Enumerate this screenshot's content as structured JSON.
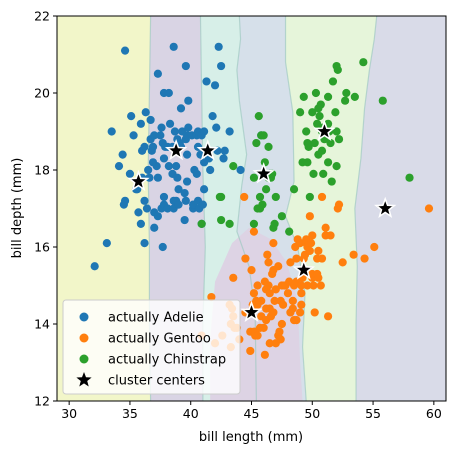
{
  "chart_data": {
    "type": "scatter",
    "title": "",
    "xlabel": "bill length (mm)",
    "ylabel": "bill depth (mm)",
    "xlim": [
      29,
      61
    ],
    "ylim": [
      12,
      22
    ],
    "xticks": [
      30,
      35,
      40,
      45,
      50,
      55,
      60
    ],
    "yticks": [
      12,
      14,
      16,
      18,
      20,
      22
    ],
    "grid": false,
    "legend_position": "lower-left",
    "background_regions": {
      "description_colors": [
        "#f2f6c9",
        "#d9d4e4",
        "#d7efe8",
        "#d6e0ea",
        "#e6f5da",
        "#d9dbe8"
      ],
      "x_boundaries_at_y16": [
        36.6,
        41.2,
        45.3,
        49.2,
        53.5
      ]
    },
    "series": [
      {
        "name": "actually Adelie",
        "color": "#1f77b4",
        "points": [
          [
            34.6,
            21.1
          ],
          [
            32.1,
            15.5
          ],
          [
            33.1,
            16.1
          ],
          [
            33.5,
            19.0
          ],
          [
            34.1,
            18.1
          ],
          [
            34.4,
            18.4
          ],
          [
            34.5,
            17.1
          ],
          [
            34.6,
            17.2
          ],
          [
            35.0,
            17.9
          ],
          [
            35.1,
            19.4
          ],
          [
            35.3,
            18.9
          ],
          [
            35.5,
            17.5
          ],
          [
            35.6,
            17.5
          ],
          [
            35.7,
            16.9
          ],
          [
            35.9,
            16.6
          ],
          [
            35.9,
            19.2
          ],
          [
            36.0,
            17.8
          ],
          [
            36.0,
            18.5
          ],
          [
            36.2,
            16.1
          ],
          [
            36.2,
            17.2
          ],
          [
            36.2,
            18.6
          ],
          [
            36.3,
            19.5
          ],
          [
            36.4,
            17.0
          ],
          [
            36.5,
            18.0
          ],
          [
            36.6,
            17.8
          ],
          [
            36.7,
            18.8
          ],
          [
            36.7,
            19.3
          ],
          [
            36.8,
            18.5
          ],
          [
            36.9,
            18.6
          ],
          [
            37.0,
            16.5
          ],
          [
            37.0,
            16.9
          ],
          [
            37.2,
            18.1
          ],
          [
            37.3,
            16.8
          ],
          [
            37.3,
            17.8
          ],
          [
            37.3,
            20.5
          ],
          [
            37.5,
            18.9
          ],
          [
            37.6,
            17.0
          ],
          [
            37.6,
            19.1
          ],
          [
            37.7,
            16.0
          ],
          [
            37.7,
            18.7
          ],
          [
            37.8,
            17.1
          ],
          [
            37.8,
            17.3
          ],
          [
            37.8,
            18.3
          ],
          [
            37.8,
            20.0
          ],
          [
            37.9,
            18.6
          ],
          [
            38.1,
            17.0
          ],
          [
            38.1,
            18.6
          ],
          [
            38.2,
            18.1
          ],
          [
            38.2,
            20.0
          ],
          [
            38.3,
            19.2
          ],
          [
            38.5,
            17.9
          ],
          [
            38.6,
            17.0
          ],
          [
            38.6,
            17.2
          ],
          [
            38.6,
            21.2
          ],
          [
            38.7,
            19.0
          ],
          [
            38.8,
            17.2
          ],
          [
            38.8,
            18.1
          ],
          [
            38.9,
            17.8
          ],
          [
            38.9,
            18.8
          ],
          [
            39.0,
            17.1
          ],
          [
            39.0,
            17.5
          ],
          [
            39.1,
            18.7
          ],
          [
            39.2,
            18.6
          ],
          [
            39.2,
            19.6
          ],
          [
            39.5,
            16.7
          ],
          [
            39.5,
            17.4
          ],
          [
            39.6,
            17.2
          ],
          [
            39.6,
            18.8
          ],
          [
            39.6,
            20.7
          ],
          [
            39.7,
            17.7
          ],
          [
            39.7,
            18.4
          ],
          [
            39.7,
            18.9
          ],
          [
            39.8,
            19.1
          ],
          [
            39.8,
            19.8
          ],
          [
            40.1,
            18.9
          ],
          [
            40.2,
            17.0
          ],
          [
            40.2,
            17.1
          ],
          [
            40.3,
            18.0
          ],
          [
            40.5,
            17.9
          ],
          [
            40.5,
            18.9
          ],
          [
            40.6,
            17.2
          ],
          [
            40.6,
            18.6
          ],
          [
            40.6,
            19.0
          ],
          [
            40.7,
            17.0
          ],
          [
            40.8,
            18.4
          ],
          [
            40.9,
            16.6
          ],
          [
            40.9,
            18.9
          ],
          [
            41.0,
            17.1
          ],
          [
            41.1,
            17.5
          ],
          [
            41.1,
            18.2
          ],
          [
            41.1,
            19.0
          ],
          [
            41.3,
            20.3
          ],
          [
            41.4,
            18.5
          ],
          [
            41.5,
            18.3
          ],
          [
            41.6,
            18.0
          ],
          [
            41.8,
            19.4
          ],
          [
            42.0,
            20.2
          ],
          [
            42.1,
            19.1
          ],
          [
            42.2,
            18.5
          ],
          [
            42.3,
            21.2
          ],
          [
            42.5,
            20.7
          ],
          [
            42.7,
            18.3
          ],
          [
            42.8,
            18.5
          ],
          [
            43.2,
            19.0
          ],
          [
            44.1,
            18.0
          ],
          [
            45.8,
            18.9
          ],
          [
            37.0,
            18.9
          ],
          [
            36.9,
            18.2
          ],
          [
            38.5,
            18.6
          ],
          [
            39.3,
            19.0
          ]
        ]
      },
      {
        "name": "actually Gentoo",
        "color": "#ff7f0e",
        "points": [
          [
            40.9,
            13.7
          ],
          [
            41.7,
            14.7
          ],
          [
            42.0,
            13.5
          ],
          [
            42.6,
            13.7
          ],
          [
            43.2,
            14.5
          ],
          [
            43.3,
            13.4
          ],
          [
            43.3,
            14.0
          ],
          [
            43.4,
            14.4
          ],
          [
            43.5,
            14.2
          ],
          [
            43.5,
            15.2
          ],
          [
            43.6,
            13.9
          ],
          [
            43.8,
            13.9
          ],
          [
            44.0,
            13.6
          ],
          [
            44.4,
            17.3
          ],
          [
            44.5,
            14.3
          ],
          [
            44.5,
            15.7
          ],
          [
            44.9,
            13.3
          ],
          [
            44.9,
            13.8
          ],
          [
            45.0,
            15.4
          ],
          [
            45.1,
            14.4
          ],
          [
            45.1,
            14.5
          ],
          [
            45.2,
            13.8
          ],
          [
            45.2,
            14.8
          ],
          [
            45.2,
            16.4
          ],
          [
            45.3,
            13.7
          ],
          [
            45.3,
            13.8
          ],
          [
            45.4,
            14.6
          ],
          [
            45.5,
            13.7
          ],
          [
            45.5,
            14.5
          ],
          [
            45.5,
            15.0
          ],
          [
            45.7,
            13.9
          ],
          [
            45.8,
            14.2
          ],
          [
            45.8,
            14.6
          ],
          [
            46.1,
            13.2
          ],
          [
            46.1,
            15.1
          ],
          [
            46.2,
            14.1
          ],
          [
            46.2,
            14.4
          ],
          [
            46.2,
            14.9
          ],
          [
            46.3,
            15.8
          ],
          [
            46.4,
            15.0
          ],
          [
            46.4,
            15.6
          ],
          [
            46.5,
            13.5
          ],
          [
            46.5,
            14.4
          ],
          [
            46.5,
            14.8
          ],
          [
            46.6,
            14.2
          ],
          [
            46.7,
            15.3
          ],
          [
            46.8,
            14.3
          ],
          [
            46.8,
            15.4
          ],
          [
            46.8,
            16.1
          ],
          [
            46.9,
            14.6
          ],
          [
            47.0,
            13.5
          ],
          [
            47.2,
            13.7
          ],
          [
            47.2,
            15.5
          ],
          [
            47.3,
            13.8
          ],
          [
            47.4,
            14.6
          ],
          [
            47.5,
            14.0
          ],
          [
            47.5,
            15.0
          ],
          [
            47.6,
            14.5
          ],
          [
            47.7,
            15.0
          ],
          [
            47.8,
            15.0
          ],
          [
            48.1,
            15.1
          ],
          [
            48.2,
            14.3
          ],
          [
            48.2,
            15.6
          ],
          [
            48.4,
            14.4
          ],
          [
            48.4,
            14.6
          ],
          [
            48.5,
            14.1
          ],
          [
            48.5,
            15.0
          ],
          [
            48.6,
            16.0
          ],
          [
            48.7,
            14.1
          ],
          [
            48.7,
            15.1
          ],
          [
            48.7,
            15.7
          ],
          [
            48.8,
            16.2
          ],
          [
            49.0,
            16.1
          ],
          [
            49.1,
            14.5
          ],
          [
            49.1,
            14.8
          ],
          [
            49.1,
            15.0
          ],
          [
            49.2,
            15.2
          ],
          [
            49.3,
            15.7
          ],
          [
            49.4,
            15.8
          ],
          [
            49.5,
            16.1
          ],
          [
            49.5,
            16.2
          ],
          [
            49.6,
            15.0
          ],
          [
            49.6,
            16.0
          ],
          [
            49.8,
            15.9
          ],
          [
            49.8,
            16.8
          ],
          [
            49.9,
            16.1
          ],
          [
            50.0,
            15.2
          ],
          [
            50.0,
            15.3
          ],
          [
            50.0,
            16.3
          ],
          [
            50.1,
            15.0
          ],
          [
            50.2,
            14.3
          ],
          [
            50.4,
            15.3
          ],
          [
            50.4,
            15.7
          ],
          [
            50.5,
            15.2
          ],
          [
            50.5,
            15.9
          ],
          [
            50.7,
            15.0
          ],
          [
            50.8,
            15.7
          ],
          [
            50.8,
            17.3
          ],
          [
            51.1,
            16.3
          ],
          [
            51.1,
            16.5
          ],
          [
            51.3,
            14.2
          ],
          [
            51.5,
            16.3
          ],
          [
            52.1,
            17.0
          ],
          [
            52.2,
            17.1
          ],
          [
            52.5,
            15.6
          ],
          [
            53.4,
            15.8
          ],
          [
            54.3,
            15.7
          ],
          [
            55.1,
            16.0
          ],
          [
            55.9,
            17.0
          ],
          [
            59.6,
            17.0
          ],
          [
            47.4,
            13.6
          ],
          [
            46.0,
            13.9
          ],
          [
            48.0,
            14.8
          ],
          [
            49.0,
            14.3
          ],
          [
            47.0,
            14.9
          ]
        ]
      },
      {
        "name": "actually Chinstrap",
        "color": "#2ca02c",
        "points": [
          [
            40.9,
            16.6
          ],
          [
            42.4,
            17.3
          ],
          [
            42.5,
            17.3
          ],
          [
            42.5,
            16.7
          ],
          [
            43.2,
            16.6
          ],
          [
            43.5,
            18.1
          ],
          [
            45.2,
            16.6
          ],
          [
            45.2,
            17.8
          ],
          [
            45.4,
            18.7
          ],
          [
            45.5,
            17.0
          ],
          [
            45.6,
            19.4
          ],
          [
            45.7,
            17.0
          ],
          [
            45.7,
            17.3
          ],
          [
            45.9,
            17.1
          ],
          [
            46.0,
            18.9
          ],
          [
            46.1,
            18.2
          ],
          [
            46.2,
            17.5
          ],
          [
            46.4,
            17.8
          ],
          [
            46.4,
            18.6
          ],
          [
            46.5,
            17.9
          ],
          [
            46.6,
            17.8
          ],
          [
            46.7,
            17.9
          ],
          [
            46.8,
            16.5
          ],
          [
            46.9,
            16.6
          ],
          [
            47.0,
            17.3
          ],
          [
            47.5,
            16.8
          ],
          [
            48.1,
            16.4
          ],
          [
            49.0,
            19.5
          ],
          [
            49.2,
            18.2
          ],
          [
            49.3,
            19.9
          ],
          [
            49.5,
            19.0
          ],
          [
            49.6,
            18.2
          ],
          [
            49.7,
            18.6
          ],
          [
            49.8,
            17.3
          ],
          [
            50.0,
            19.5
          ],
          [
            50.1,
            17.9
          ],
          [
            50.2,
            18.7
          ],
          [
            50.3,
            20.0
          ],
          [
            50.5,
            18.4
          ],
          [
            50.5,
            19.6
          ],
          [
            50.6,
            19.4
          ],
          [
            50.7,
            19.7
          ],
          [
            50.8,
            18.5
          ],
          [
            50.8,
            19.0
          ],
          [
            50.9,
            17.9
          ],
          [
            50.9,
            19.1
          ],
          [
            51.0,
            18.8
          ],
          [
            51.3,
            18.2
          ],
          [
            51.3,
            19.2
          ],
          [
            51.3,
            19.9
          ],
          [
            51.4,
            19.0
          ],
          [
            51.5,
            18.7
          ],
          [
            51.7,
            20.3
          ],
          [
            51.9,
            19.5
          ],
          [
            52.0,
            18.1
          ],
          [
            52.0,
            19.0
          ],
          [
            52.0,
            20.7
          ],
          [
            52.2,
            18.8
          ],
          [
            52.7,
            19.8
          ],
          [
            52.8,
            20.0
          ],
          [
            53.5,
            19.9
          ],
          [
            54.2,
            20.8
          ],
          [
            55.8,
            19.8
          ],
          [
            58.0,
            17.8
          ],
          [
            49.6,
            18.7
          ],
          [
            48.5,
            17.5
          ],
          [
            51.6,
            17.7
          ],
          [
            50.4,
            19.2
          ],
          [
            45.8,
            18.9
          ],
          [
            52.1,
            20.6
          ]
        ]
      },
      {
        "name": "cluster centers",
        "color": "#000000",
        "marker": "star",
        "points": [
          [
            35.7,
            17.7
          ],
          [
            38.8,
            18.5
          ],
          [
            41.4,
            18.5
          ],
          [
            46.0,
            17.9
          ],
          [
            51.0,
            19.0
          ],
          [
            49.3,
            15.4
          ],
          [
            45.0,
            14.3
          ],
          [
            56.0,
            17.0
          ]
        ]
      }
    ]
  }
}
